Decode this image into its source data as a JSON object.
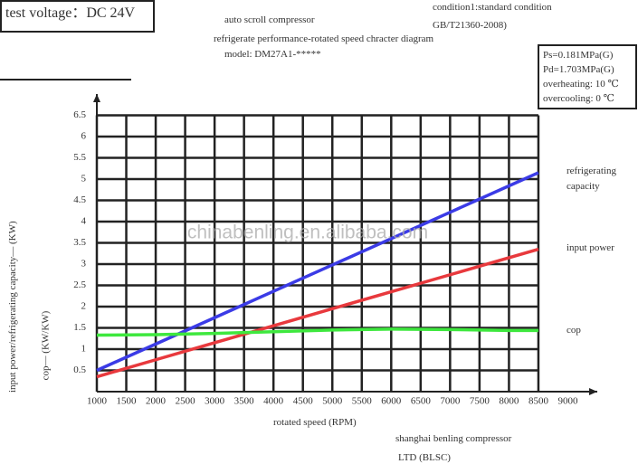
{
  "chart_data": {
    "type": "line",
    "title": "refrigerate performance-rotated speed chracter diagram",
    "subtitle": "auto scroll compressor",
    "model": "model: DM27A1-*****",
    "voltage": "test voltage：DC 24V",
    "condition": [
      "condition1:standard condition",
      "GB/T21360-2008)"
    ],
    "parameters": [
      "Ps=0.181MPa(G)",
      "Pd=1.703MPa(G)",
      "overheating: 10 ℃",
      "overcooling: 0 ℃"
    ],
    "x_label": "rotated speed (RPM)",
    "y_label": "input power/refrigerating capacity— (KW)",
    "y_label_2": "cop— (KW/KW)",
    "footer": [
      "shanghai benling compressor",
      "LTD (BLSC)"
    ],
    "watermark": "chinabenling.en.alibaba.com",
    "x": [
      1000,
      2000,
      3000,
      4000,
      5000,
      6000,
      7000,
      8000,
      8500
    ],
    "series": [
      {
        "name": "refrigerating capacity",
        "color": "#3b3be6",
        "values": [
          0.5,
          1.12,
          1.74,
          2.36,
          2.98,
          3.6,
          4.22,
          4.84,
          5.15
        ]
      },
      {
        "name": "input power",
        "color": "#e8393d",
        "values": [
          0.35,
          0.75,
          1.15,
          1.55,
          1.95,
          2.35,
          2.75,
          3.15,
          3.35
        ]
      },
      {
        "name": "cop",
        "color": "#3ee83e",
        "values": [
          1.33,
          1.34,
          1.37,
          1.41,
          1.45,
          1.47,
          1.46,
          1.44,
          1.44
        ]
      }
    ],
    "xlim": [
      1000,
      9500
    ],
    "xticks": [
      1000,
      1500,
      2000,
      2500,
      3000,
      3500,
      4000,
      4500,
      5000,
      5500,
      6000,
      6500,
      7000,
      7500,
      8000,
      8500,
      9000
    ],
    "ylim": [
      0,
      7
    ],
    "yticks": [
      0.5,
      1.0,
      1.5,
      2.0,
      2.5,
      3.0,
      3.5,
      4.0,
      4.5,
      5.0,
      5.5,
      6.0,
      6.5
    ],
    "grid": true
  }
}
